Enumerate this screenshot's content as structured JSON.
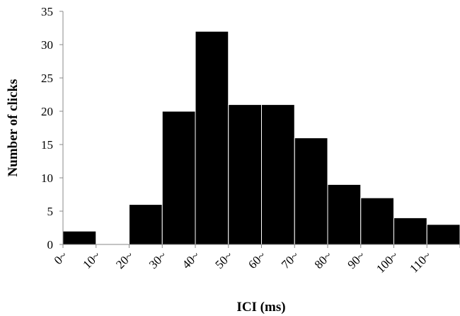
{
  "chart_data": {
    "type": "bar",
    "title": "",
    "xlabel": "ICI (ms)",
    "ylabel": "Number of clicks",
    "categories": [
      "0~",
      "10~",
      "20~",
      "30~",
      "40~",
      "50~",
      "60~",
      "70~",
      "80~",
      "90~",
      "100~",
      "110~"
    ],
    "values": [
      2,
      0,
      6,
      20,
      32,
      21,
      21,
      16,
      9,
      7,
      4,
      3
    ],
    "ylim": [
      0,
      35
    ],
    "yticks": [
      0,
      5,
      10,
      15,
      20,
      25,
      30,
      35
    ],
    "grid": false,
    "legend": "none",
    "bar_color": "#000000",
    "bar_edge_color": "#ffffff"
  }
}
